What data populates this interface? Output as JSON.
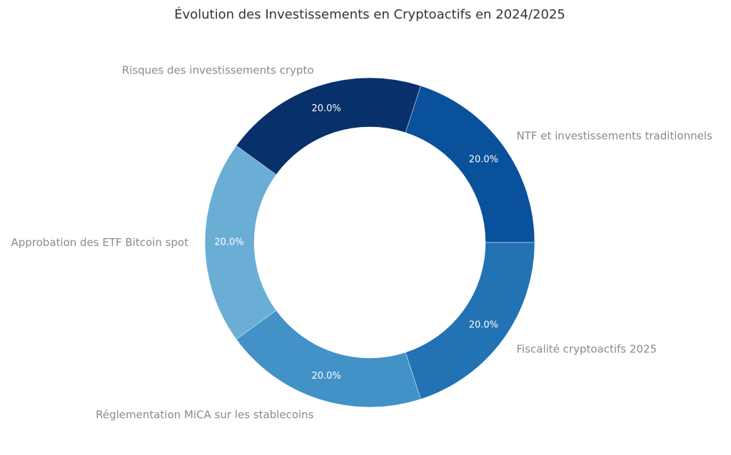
{
  "chart_data": {
    "type": "pie",
    "style": "donut",
    "title": "Évolution des Investissements en Cryptoactifs en 2024/2025",
    "categories": [
      "NTF et investissements traditionnels",
      "Fiscalité cryptoactifs 2025",
      "Réglementation MiCA sur les stablecoins",
      "Approbation des ETF Bitcoin spot",
      "Risques des investissements crypto"
    ],
    "values": [
      20,
      20,
      20,
      20,
      20
    ],
    "value_labels": [
      "20.0%",
      "20.0%",
      "20.0%",
      "20.0%",
      "20.0%"
    ],
    "colors": [
      "#0a519c",
      "#2272b4",
      "#4292c7",
      "#6aaed6",
      "#08306b"
    ],
    "label_color": "#8a8a8a",
    "value_label_color": "#ffffff",
    "start_angle_deg": 72,
    "direction": "clockwise"
  }
}
